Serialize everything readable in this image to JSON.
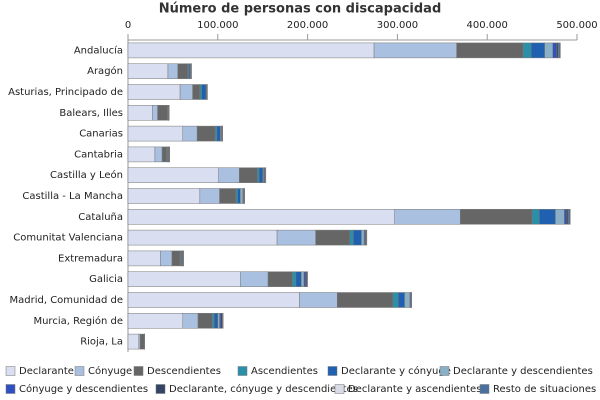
{
  "chart_data": {
    "type": "bar",
    "orientation": "horizontal",
    "stacked": true,
    "title": "Número de personas con discapacidad",
    "categories": [
      "Andalucía",
      "Aragón",
      "Asturias, Principado de",
      "Balears, Illes",
      "Canarias",
      "Cantabria",
      "Castilla y León",
      "Castilla - La Mancha",
      "Cataluña",
      "Comunitat Valenciana",
      "Extremadura",
      "Galicia",
      "Madrid, Comunidad de",
      "Murcia, Región de",
      "Rioja, La"
    ],
    "xlim": [
      0,
      500000
    ],
    "xticks": [
      0,
      {
        "value": 100000,
        "label": "100.000"
      },
      {
        "value": 200000,
        "label": "200.000"
      },
      {
        "value": 300000,
        "label": "300.000"
      },
      {
        "value": 400000,
        "label": "400.000"
      },
      {
        "value": 500000,
        "label": "500.000"
      }
    ],
    "series": [
      {
        "name": "Declarante",
        "color": "#d9dff0",
        "values": [
          274000,
          44500,
          58000,
          27000,
          61000,
          30000,
          101000,
          80000,
          297000,
          166000,
          36000,
          125000,
          191000,
          61000,
          12000
        ]
      },
      {
        "name": "Cónyuge",
        "color": "#a9c0e0",
        "values": [
          92000,
          11000,
          14000,
          6000,
          16000,
          8000,
          23000,
          22000,
          73000,
          43000,
          13000,
          31000,
          42000,
          17000,
          1500
        ]
      },
      {
        "name": "Descendientes",
        "color": "#666666",
        "values": [
          74000,
          11000,
          8000,
          11000,
          20000,
          5000,
          20000,
          18000,
          80000,
          38000,
          9000,
          27000,
          62000,
          16000,
          4500
        ]
      },
      {
        "name": "Ascendientes",
        "color": "#2a8fa8",
        "values": [
          9000,
          1000,
          2000,
          400,
          2000,
          700,
          2000,
          2000,
          8000,
          4000,
          800,
          4000,
          6000,
          2000,
          200
        ]
      },
      {
        "name": "Declarante y cónyuge",
        "color": "#2060b0",
        "values": [
          15000,
          1500,
          5000,
          400,
          4000,
          800,
          4000,
          3000,
          18000,
          9000,
          800,
          6000,
          7000,
          4000,
          100
        ]
      },
      {
        "name": "Declarante y descendientes",
        "color": "#8ab0c8",
        "values": [
          9000,
          500,
          500,
          300,
          1000,
          500,
          1000,
          3000,
          10000,
          3000,
          500,
          3000,
          6000,
          2000,
          100
        ]
      },
      {
        "name": "Cónyuge y descendientes",
        "color": "#3050c0",
        "values": [
          4000,
          300,
          200,
          200,
          500,
          300,
          800,
          700,
          2000,
          1000,
          500,
          1500,
          800,
          1500,
          50
        ]
      },
      {
        "name": "Declarante, cónyuge y descendientes",
        "color": "#334466",
        "values": [
          2000,
          300,
          200,
          200,
          300,
          600,
          800,
          500,
          2000,
          1000,
          700,
          1500,
          600,
          1500,
          50
        ]
      },
      {
        "name": "Declarante y ascendientes",
        "color": "#d8dce8",
        "values": [
          500,
          200,
          100,
          100,
          200,
          300,
          300,
          300,
          500,
          500,
          300,
          500,
          200,
          500,
          50
        ]
      },
      {
        "name": "Resto de situaciones",
        "color": "#4a70a0",
        "values": [
          2000,
          500,
          500,
          300,
          500,
          300,
          600,
          500,
          2000,
          500,
          400,
          500,
          400,
          500,
          100
        ]
      }
    ]
  }
}
